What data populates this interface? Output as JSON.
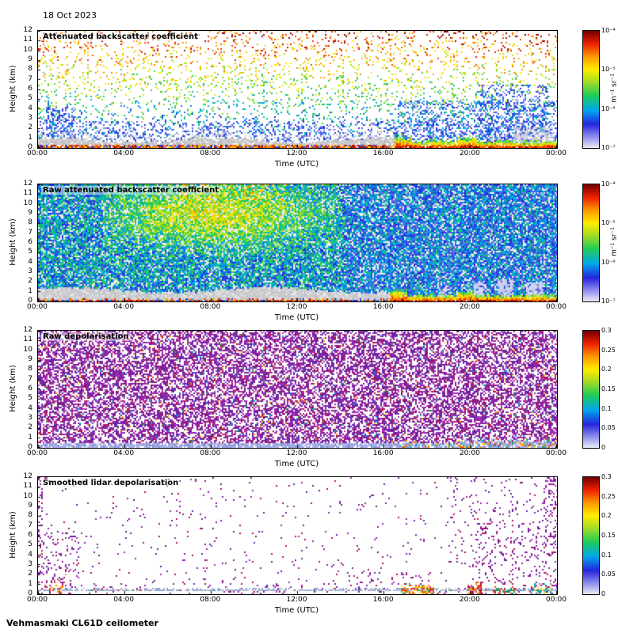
{
  "page": {
    "date_label": "18 Oct 2023",
    "footer": "Vehmasmaki CL61D ceilometer",
    "background": "#ffffff"
  },
  "colormap": {
    "stops": [
      [
        "#e8e8f8",
        0
      ],
      [
        "#9090ee",
        0.09
      ],
      [
        "#2525dd",
        0.2
      ],
      [
        "#00a8ee",
        0.32
      ],
      [
        "#22cc55",
        0.45
      ],
      [
        "#aadd22",
        0.57
      ],
      [
        "#ffee00",
        0.67
      ],
      [
        "#ff9900",
        0.78
      ],
      [
        "#ee2200",
        0.89
      ],
      [
        "#770000",
        1
      ]
    ]
  },
  "chart_data": [
    {
      "kind": "backscatter",
      "type": "heatmap",
      "title": "Attenuated backscatter coefficient",
      "xlabel": "Time (UTC)",
      "ylabel": "Height (km)",
      "x_ticks": [
        "00:00",
        "04:00",
        "08:00",
        "12:00",
        "16:00",
        "20:00",
        "00:00"
      ],
      "y_ticks": [
        "12",
        "11",
        "10",
        "9",
        "8",
        "7",
        "6",
        "5",
        "4",
        "3",
        "2",
        "1",
        "0"
      ],
      "x_range_hours": [
        0,
        24
      ],
      "y_range_km": [
        0,
        12
      ],
      "colorbar": {
        "scale": "log10",
        "range": [
          1e-07,
          0.0001
        ],
        "ticks": [
          "10⁻⁴",
          "10⁻⁵",
          "10⁻⁶",
          "10⁻⁷"
        ],
        "unit": "m⁻¹ sr⁻¹"
      },
      "seed": 11,
      "description": "Sparse noise speckle aloft whose value grows with height (blue low, green mid, orange-red above 9 km); grey undetermined layer below ~1 km until 16:30 UTC over a thin red surface return; strong red-yellow-green boundary-layer echo below ~0.8 km after 16:30; dense blue hydrometeor streaks near 01:00 and 17:00-24:00; pale grey-lavender cloud blobs 22:00-24:00 at 0.5-2 km.",
      "features": {
        "background": "#ffffff",
        "speckle": {
          "prob": 0.13,
          "v_base": 0.16,
          "v_height_gain": 0.74,
          "v_jitter": 0.34
        },
        "low_blue": {
          "max_km": 2.8,
          "prob": 0.2,
          "v_min": 0.04,
          "v_max": 0.3
        },
        "streaks": [
          {
            "t0": 0.35,
            "t1": 1.7,
            "z0": 0,
            "z1": 4.2,
            "prob": 0.4,
            "v_min": 0.05,
            "v_max": 0.35
          },
          {
            "t0": 16.6,
            "t1": 24,
            "z0": 0,
            "z1": 4.8,
            "prob": 0.26,
            "v_min": 0.05,
            "v_max": 0.38
          },
          {
            "t0": 20.3,
            "t1": 23.6,
            "z0": 0,
            "z1": 6.5,
            "prob": 0.22,
            "v_min": 0.05,
            "v_max": 0.3
          },
          {
            "t0": 8.35,
            "t1": 8.75,
            "z0": 0,
            "z1": 2.2,
            "prob": 0.3,
            "v_min": 0.06,
            "v_max": 0.3
          }
        ],
        "gray_layer": {
          "t_end": 16.5,
          "top_km_min": 0.55,
          "top_km_max": 1.05,
          "prob": 0.88,
          "colors": [
            "#bfbfbf",
            "#cbcbcb",
            "#d6d6d6",
            "#c2c2cc"
          ]
        },
        "gray_blobs": [
          {
            "t0": 22.0,
            "t1": 23.85,
            "z0": 0.35,
            "z1": 2.1,
            "prob": 0.6
          },
          {
            "t0": 20.9,
            "t1": 21.5,
            "z0": 0.3,
            "z1": 1.3,
            "prob": 0.45
          }
        ],
        "ground": {
          "t_split": 16.5,
          "early_top_km": 0.28,
          "late_top_km": 0.8,
          "prob": 0.95
        },
        "plumes": [
          {
            "t0": 16.3,
            "t1": 17.3,
            "z1": 1.3
          },
          {
            "t0": 19.4,
            "t1": 20.3,
            "z1": 1.2
          },
          {
            "t0": 18.0,
            "t1": 18.7,
            "z1": 0.95
          }
        ]
      }
    },
    {
      "kind": "raw_backscatter",
      "type": "heatmap",
      "title": "Raw attenuated backscatter coefficient",
      "xlabel": "Time (UTC)",
      "ylabel": "Height (km)",
      "x_ticks": [
        "00:00",
        "04:00",
        "08:00",
        "12:00",
        "16:00",
        "20:00",
        "00:00"
      ],
      "y_ticks": [
        "12",
        "11",
        "10",
        "9",
        "8",
        "7",
        "6",
        "5",
        "4",
        "3",
        "2",
        "1",
        "0"
      ],
      "x_range_hours": [
        0,
        24
      ],
      "y_range_km": [
        0,
        12
      ],
      "colorbar": {
        "scale": "log10",
        "range": [
          1e-07,
          0.0001
        ],
        "ticks": [
          "10⁻⁴",
          "10⁻⁵",
          "10⁻⁶",
          "10⁻⁷"
        ],
        "unit": "m⁻¹ sr⁻¹"
      },
      "seed": 22,
      "description": "Dense uncorrected noise over the full profile: blue-cyan speckle background with a green-yellow daytime enhancement ~04:00-14:00 above 3 km and occasional orange near the top 07:00-11:00; grey band below ~1.4 km until ~16:00; strong red-yellow surface echo after 16:00 with pale precipitation columns between 18:30 and 23:30.",
      "features": {
        "background": "#ececec",
        "speckle": {
          "prob": 0.82,
          "v_min": 0.16,
          "v_max": 0.48
        },
        "plume": {
          "t0": 3.0,
          "t1": 14.0,
          "z0": 2.2,
          "cx": 8.2,
          "cz": 9.0,
          "boost": 0.3
        },
        "top_warm": {
          "t0": 6.5,
          "t1": 11.5,
          "z0": 10.3,
          "prob": 0.2,
          "v_min": 0.6,
          "v_max": 0.82
        },
        "gray_layer": {
          "t_end": 16.3,
          "top_km_min": 0.9,
          "top_km_max": 1.45,
          "prob": 0.9,
          "colors": [
            "#c6c6c6",
            "#d0d0d0",
            "#dadada",
            "#c4c4ce"
          ]
        },
        "ground": {
          "t_split": 16.3,
          "early_top_km": 0.22,
          "late_top_km": 0.75,
          "prob": 0.96
        },
        "light_cols": [
          {
            "t0": 20.15,
            "t1": 20.7,
            "z1": 2.0
          },
          {
            "t0": 21.25,
            "t1": 21.95,
            "z1": 2.3
          },
          {
            "t0": 22.6,
            "t1": 23.35,
            "z1": 1.9
          },
          {
            "t0": 18.55,
            "t1": 18.9,
            "z1": 1.5
          }
        ],
        "plumes": [
          {
            "t0": 16.2,
            "t1": 17.1,
            "z1": 1.25
          },
          {
            "t0": 19.4,
            "t1": 20.15,
            "z1": 1.1
          }
        ]
      }
    },
    {
      "kind": "raw_depol",
      "type": "heatmap",
      "title": "Raw depolarisation",
      "xlabel": "Time (UTC)",
      "ylabel": "Height (km)",
      "x_ticks": [
        "00:00",
        "04:00",
        "08:00",
        "12:00",
        "16:00",
        "20:00",
        "00:00"
      ],
      "y_ticks": [
        "12",
        "11",
        "10",
        "9",
        "8",
        "7",
        "6",
        "5",
        "4",
        "3",
        "2",
        "1",
        "0"
      ],
      "x_range_hours": [
        0,
        24
      ],
      "y_range_km": [
        0,
        12
      ],
      "colorbar": {
        "scale": "linear",
        "range": [
          0,
          0.3
        ],
        "ticks": [
          "0.3",
          "0.25",
          "0.2",
          "0.15",
          "0.1",
          "0.05",
          "0"
        ]
      },
      "seed": 33,
      "description": "Uniform dense purple speckle (depolarisation noise at/above 0.3) through the whole troposphere with rare bright dots; coherent low-depolarisation (~0.05) pale periwinkle band below ~0.45 km all day, becoming thicker and mixed with red-orange-green values after ~16:30, especially 19:00-24:00.",
      "features": {
        "background": "#ffffff",
        "speckle": {
          "prob": 0.58,
          "rare_prob": 0.05,
          "palette": [
            "#8e24aa",
            "#7b1fa2",
            "#9c27b0",
            "#6a1b9a",
            "#ad1457",
            "#5e35b1",
            "#b03ab0"
          ],
          "rare_palette": [
            "#e53935",
            "#fb8c00",
            "#fdd835",
            "#43a047",
            "#00acc1",
            "#1e88e5"
          ]
        },
        "band": {
          "top_km": 0.45,
          "prob": 0.85,
          "color": "#a8b2e8",
          "alt": "#8894d8"
        },
        "band_late": {
          "t0": 16.5,
          "color_prob": 0.33,
          "palette": [
            "#e53935",
            "#fb8c00",
            "#fdd835",
            "#43a047",
            "#00acc1"
          ]
        },
        "thick": [
          {
            "t0": 19.3,
            "t1": 23.7,
            "z1": 0.95
          },
          {
            "t0": 17.0,
            "t1": 17.7,
            "z1": 0.7
          }
        ]
      }
    },
    {
      "kind": "smooth_depol",
      "type": "heatmap",
      "title": "Smoothed lidar depolarisation",
      "xlabel": "Time (UTC)",
      "ylabel": "Height (km)",
      "x_ticks": [
        "00:00",
        "04:00",
        "08:00",
        "12:00",
        "16:00",
        "20:00",
        "00:00"
      ],
      "y_ticks": [
        "12",
        "11",
        "10",
        "9",
        "8",
        "7",
        "6",
        "5",
        "4",
        "3",
        "2",
        "1",
        "0"
      ],
      "x_range_hours": [
        0,
        24
      ],
      "y_range_km": [
        0,
        12
      ],
      "colorbar": {
        "scale": "linear",
        "range": [
          0,
          0.3
        ],
        "ticks": [
          "0.3",
          "0.25",
          "0.2",
          "0.15",
          "0.1",
          "0.05",
          "0"
        ]
      },
      "seed": 44,
      "description": "Mostly empty aloft with sparse residual purple speckle, denser 00:30-01:30 below 6.5 km and 19:00-24:00 up to 12 km; continuous low-depolarisation grey-blue line at 0.3-0.55 km across the whole day; colourful high-depolarisation surface patches after 16:30 (green/red 17:00-18:30, red 20:00, green-teal 21:00-23:45) and red-orange dots near 00:30-01:30.",
      "features": {
        "background": "#ffffff",
        "base_prob": 0.02,
        "palette": [
          "#8e24aa",
          "#7b1fa2",
          "#9c27b0",
          "#6a1b9a",
          "#ad1457"
        ],
        "regions": [
          {
            "t0": 0.25,
            "t1": 1.9,
            "z0": 0,
            "z1": 6.5,
            "prob": 0.14
          },
          {
            "t0": 0.0,
            "t1": 0.25,
            "z0": 0,
            "z1": 12,
            "prob": 0.2
          },
          {
            "t0": 19.0,
            "t1": 24.0,
            "z0": 0,
            "z1": 12,
            "prob": 0.06
          },
          {
            "t0": 20.0,
            "t1": 23.3,
            "z0": 0,
            "z1": 7.5,
            "prob": 0.12
          },
          {
            "t0": 23.4,
            "t1": 24.0,
            "z0": 0,
            "z1": 12,
            "prob": 0.22
          },
          {
            "t0": 14.3,
            "t1": 17.7,
            "z0": 0,
            "z1": 2.2,
            "prob": 0.09
          },
          {
            "t0": 2.0,
            "t1": 24.0,
            "z0": 0,
            "z1": 1.5,
            "prob": 0.05
          },
          {
            "t0": 9.0,
            "t1": 13.2,
            "z0": 0,
            "z1": 0.9,
            "prob": 0.07
          }
        ],
        "line": {
          "z0": 0.28,
          "z1": 0.55,
          "prob": 0.82,
          "color": "#97a5c9",
          "alt": "#b9c3df",
          "dot_prob": 0.05,
          "dot_palette": [
            "#43a047",
            "#1e88e5",
            "#e53935"
          ]
        },
        "blobs": [
          {
            "t0": 16.75,
            "t1": 18.3,
            "z1": 1.0,
            "prob": 0.65,
            "palette": [
              "#43a047",
              "#e53935",
              "#fdd835",
              "#fb8c00"
            ]
          },
          {
            "t0": 19.85,
            "t1": 20.5,
            "z1": 1.15,
            "prob": 0.72,
            "palette": [
              "#e53935",
              "#fb8c00",
              "#b71c1c"
            ]
          },
          {
            "t0": 21.0,
            "t1": 22.2,
            "z1": 0.9,
            "prob": 0.55,
            "palette": [
              "#43a047",
              "#00897b",
              "#e53935"
            ]
          },
          {
            "t0": 22.8,
            "t1": 23.75,
            "z1": 1.0,
            "prob": 0.55,
            "palette": [
              "#43a047",
              "#fdd835",
              "#00acc1"
            ]
          },
          {
            "t0": 0.3,
            "t1": 1.35,
            "z1": 1.9,
            "prob": 0.22,
            "palette": [
              "#e53935",
              "#fb8c00"
            ]
          }
        ]
      }
    }
  ]
}
